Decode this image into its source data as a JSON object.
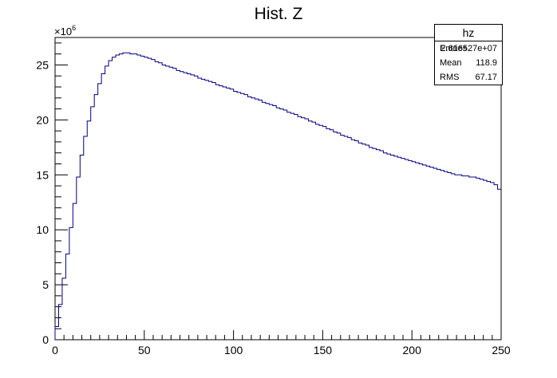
{
  "chart_data": {
    "type": "histogram",
    "title": "Hist. Z",
    "y_multiplier_label": "×10",
    "y_multiplier_exp": "6",
    "xlim": [
      0,
      250
    ],
    "ylim": [
      0,
      27.5
    ],
    "x_ticks": [
      "0",
      "50",
      "100",
      "150",
      "200",
      "250"
    ],
    "y_ticks": [
      "0",
      "5",
      "10",
      "15",
      "20",
      "25"
    ],
    "line_color": "#000080",
    "stats": {
      "name": "hz",
      "rows": [
        {
          "key": "Entries",
          "value": "2.616527e+07"
        },
        {
          "key": "Mean",
          "value": "118.9"
        },
        {
          "key": "RMS",
          "value": "67.17"
        }
      ]
    },
    "bins": {
      "bin_width": 2,
      "centers": [
        1,
        3,
        5,
        7,
        9,
        11,
        13,
        15,
        17,
        19,
        21,
        23,
        25,
        27,
        29,
        31,
        33,
        35,
        37,
        39,
        41,
        43,
        45,
        47,
        49,
        51,
        53,
        55,
        57,
        59,
        61,
        63,
        65,
        67,
        69,
        71,
        73,
        75,
        77,
        79,
        81,
        83,
        85,
        87,
        89,
        91,
        93,
        95,
        97,
        99,
        101,
        103,
        105,
        107,
        109,
        111,
        113,
        115,
        117,
        119,
        121,
        123,
        125,
        127,
        129,
        131,
        133,
        135,
        137,
        139,
        141,
        143,
        145,
        147,
        149,
        151,
        153,
        155,
        157,
        159,
        161,
        163,
        165,
        167,
        169,
        171,
        173,
        175,
        177,
        179,
        181,
        183,
        185,
        187,
        189,
        191,
        193,
        195,
        197,
        199,
        201,
        203,
        205,
        207,
        209,
        211,
        213,
        215,
        217,
        219,
        221,
        223,
        225,
        227,
        229,
        231,
        233,
        235,
        237,
        239,
        241,
        243,
        245,
        247,
        249
      ],
      "values": [
        1.2,
        3.2,
        5.6,
        7.8,
        10.2,
        12.4,
        14.8,
        16.8,
        18.5,
        19.9,
        21.2,
        22.3,
        23.3,
        24.2,
        24.9,
        25.4,
        25.7,
        25.9,
        26.0,
        26.1,
        26.1,
        26.0,
        26.0,
        25.9,
        25.8,
        25.7,
        25.6,
        25.5,
        25.3,
        25.2,
        25.0,
        24.9,
        24.8,
        24.7,
        24.5,
        24.4,
        24.3,
        24.2,
        24.1,
        24.0,
        23.8,
        23.7,
        23.6,
        23.5,
        23.4,
        23.2,
        23.1,
        23.0,
        22.9,
        22.8,
        22.6,
        22.5,
        22.4,
        22.3,
        22.1,
        22.0,
        21.9,
        21.8,
        21.6,
        21.5,
        21.4,
        21.3,
        21.1,
        21.0,
        20.9,
        20.7,
        20.6,
        20.5,
        20.3,
        20.2,
        20.1,
        19.9,
        19.8,
        19.6,
        19.5,
        19.4,
        19.2,
        19.1,
        18.9,
        18.8,
        18.6,
        18.5,
        18.4,
        18.2,
        18.1,
        17.9,
        17.8,
        17.7,
        17.5,
        17.4,
        17.3,
        17.2,
        17.0,
        16.9,
        16.8,
        16.7,
        16.6,
        16.5,
        16.4,
        16.3,
        16.2,
        16.1,
        16.0,
        15.9,
        15.8,
        15.7,
        15.6,
        15.5,
        15.4,
        15.3,
        15.2,
        15.1,
        15.0,
        15.0,
        14.9,
        14.9,
        14.8,
        14.8,
        14.7,
        14.6,
        14.5,
        14.4,
        14.3,
        14.1,
        13.7
      ]
    }
  }
}
